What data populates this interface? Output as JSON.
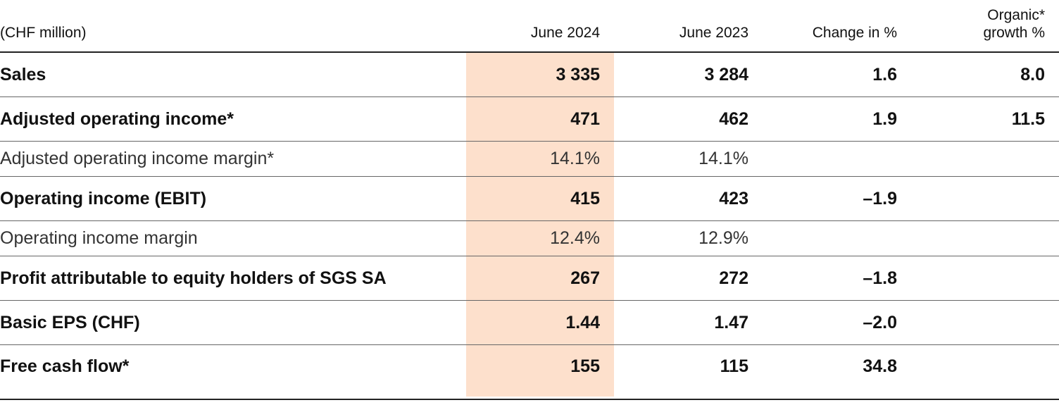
{
  "highlight_color": "#fde0cc",
  "header": {
    "unit": "(CHF million)",
    "columns": [
      "June 2024",
      "June 2023",
      "Change in %",
      "Organic*",
      "growth %"
    ]
  },
  "rows": [
    {
      "label": "Sales",
      "june2024": "3 335",
      "june2023": "3 284",
      "change": "1.6",
      "organic": "8.0",
      "style": "bold"
    },
    {
      "label": "Adjusted operating income*",
      "june2024": "471",
      "june2023": "462",
      "change": "1.9",
      "organic": "11.5",
      "style": "bold"
    },
    {
      "label": "Adjusted operating income margin*",
      "june2024": "14.1%",
      "june2023": "14.1%",
      "change": "",
      "organic": "",
      "style": "light"
    },
    {
      "label": "Operating income (EBIT)",
      "june2024": "415",
      "june2023": "423",
      "change": "–1.9",
      "organic": "",
      "style": "bold"
    },
    {
      "label": "Operating income margin",
      "june2024": "12.4%",
      "june2023": "12.9%",
      "change": "",
      "organic": "",
      "style": "light"
    },
    {
      "label": "Profit attributable to equity holders of SGS SA",
      "june2024": "267",
      "june2023": "272",
      "change": "–1.8",
      "organic": "",
      "style": "bold"
    },
    {
      "label": "Basic EPS (CHF)",
      "june2024": "1.44",
      "june2023": "1.47",
      "change": "–2.0",
      "organic": "",
      "style": "bold"
    },
    {
      "label": "Free cash flow*",
      "june2024": "155",
      "june2023": "115",
      "change": "34.8",
      "organic": "",
      "style": "bold"
    }
  ]
}
